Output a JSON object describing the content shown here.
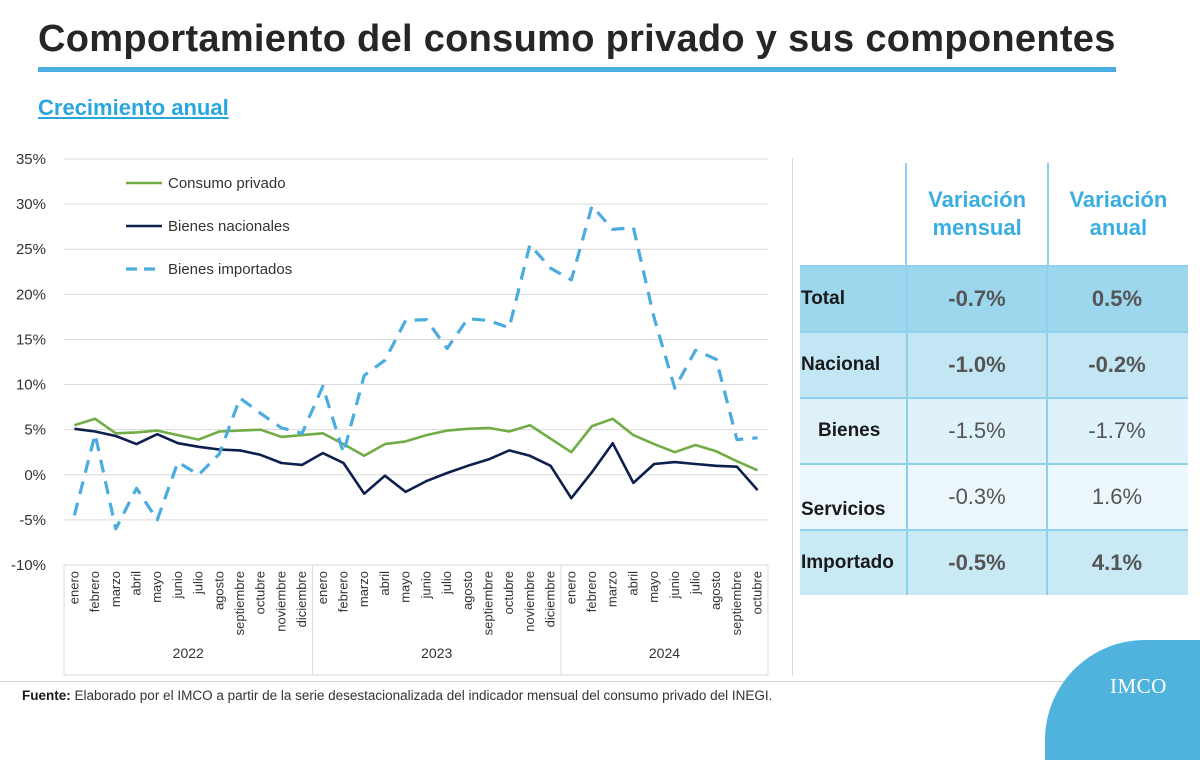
{
  "header": {
    "title": "Comportamiento del consumo privado y sus componentes",
    "subtitle": "Crecimiento anual"
  },
  "chart_data": {
    "type": "line",
    "ylim": [
      -10,
      35
    ],
    "yticks": [
      -10,
      -5,
      0,
      5,
      10,
      15,
      20,
      25,
      30,
      35
    ],
    "ytick_labels": [
      "-10%",
      "-5%",
      "0%",
      "5%",
      "10%",
      "15%",
      "20%",
      "25%",
      "30%",
      "35%"
    ],
    "months": [
      "enero",
      "febrero",
      "marzo",
      "abril",
      "mayo",
      "junio",
      "julio",
      "agosto",
      "septiembre",
      "octubre",
      "noviembre",
      "diciembre",
      "enero",
      "febrero",
      "marzo",
      "abril",
      "mayo",
      "junio",
      "julio",
      "agosto",
      "septiembre",
      "octubre",
      "noviembre",
      "diciembre",
      "enero",
      "febrero",
      "marzo",
      "abril",
      "mayo",
      "junio",
      "julio",
      "agosto",
      "septiembre",
      "octubre"
    ],
    "years": [
      {
        "label": "2022",
        "start": 0,
        "end": 11
      },
      {
        "label": "2023",
        "start": 12,
        "end": 23
      },
      {
        "label": "2024",
        "start": 24,
        "end": 33
      }
    ],
    "legend_position": "top-left",
    "grid": true,
    "series": [
      {
        "name": "Consumo privado",
        "color": "#70ad47",
        "style": "solid",
        "values": [
          5.5,
          6.2,
          4.6,
          4.7,
          4.9,
          4.4,
          3.9,
          4.8,
          4.9,
          5.0,
          4.2,
          4.4,
          4.6,
          3.4,
          2.1,
          3.4,
          3.7,
          4.4,
          4.9,
          5.1,
          5.2,
          4.8,
          5.5,
          4.0,
          2.5,
          5.4,
          6.2,
          4.4,
          3.4,
          2.5,
          3.3,
          2.6,
          1.5,
          0.5
        ]
      },
      {
        "name": "Bienes nacionales",
        "color": "#0d1f4d",
        "style": "solid",
        "values": [
          5.1,
          4.8,
          4.3,
          3.4,
          4.5,
          3.5,
          3.1,
          2.8,
          2.7,
          2.2,
          1.3,
          1.1,
          2.4,
          1.3,
          -2.1,
          -0.1,
          -1.9,
          -0.7,
          0.2,
          1.0,
          1.7,
          2.7,
          2.1,
          1.0,
          -2.6,
          0.3,
          3.5,
          -0.9,
          1.2,
          1.4,
          1.2,
          1.0,
          0.9,
          -1.7
        ]
      },
      {
        "name": "Bienes importados",
        "color": "#4bacdf",
        "style": "dashed",
        "values": [
          -4.5,
          4.5,
          -6.0,
          -1.5,
          -5.0,
          1.4,
          0.0,
          2.3,
          8.5,
          6.8,
          5.2,
          4.6,
          9.8,
          2.4,
          11.0,
          12.7,
          17.1,
          17.2,
          14.0,
          17.3,
          17.1,
          16.3,
          25.5,
          22.9,
          21.6,
          29.8,
          27.2,
          27.4,
          17.4,
          9.6,
          13.8,
          12.8,
          3.9,
          4.1
        ]
      }
    ]
  },
  "table": {
    "headers": [
      "Variación mensual",
      "Variación anual"
    ],
    "rows": [
      {
        "label": "Total",
        "mensual": "-0.7%",
        "anual": "0.5%"
      },
      {
        "label": "Nacional",
        "mensual": "-1.0%",
        "anual": "-0.2%"
      },
      {
        "label": "Bienes",
        "mensual": "-1.5%",
        "anual": "-1.7%"
      },
      {
        "label": "Servicios",
        "mensual": "-0.3%",
        "anual": "1.6%"
      },
      {
        "label": "Importado",
        "mensual": "-0.5%",
        "anual": "4.1%"
      }
    ]
  },
  "footer": {
    "label": "Fuente:",
    "text": " Elaborado por el IMCO a partir de la serie desestacionalizada del indicador mensual del consumo privado del INEGI."
  },
  "logo": {
    "text": "IMCO"
  }
}
